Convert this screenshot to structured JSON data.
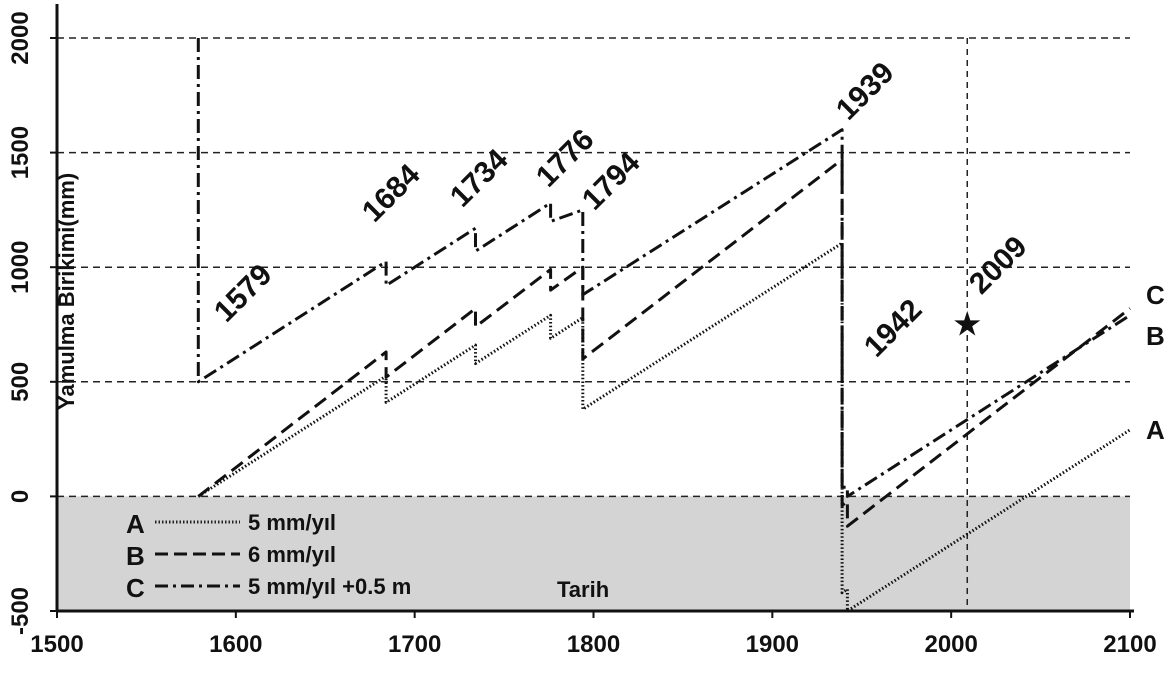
{
  "chart_data": {
    "type": "line",
    "xlabel": "Tarih",
    "ylabel": "Yamulma Birikimi(mm)",
    "xlim": [
      1500,
      2100
    ],
    "ylim": [
      -500,
      2000
    ],
    "x_ticks": [
      "1500",
      "1600",
      "1700",
      "1800",
      "1900",
      "2000",
      "2100"
    ],
    "y_ticks": [
      "-500",
      "0",
      "500",
      "1000",
      "1500",
      "2000"
    ],
    "grid": "horizontal dashed at y ticks",
    "shaded_region": {
      "y_from": -500,
      "y_to": 0,
      "color": "#d4d4d4"
    },
    "reference_line_x": 2009,
    "star_marker": {
      "x": 2009,
      "y": 750,
      "label": "2009"
    },
    "event_years": [
      "1579",
      "1684",
      "1734",
      "1776",
      "1794",
      "1939",
      "1942"
    ],
    "series": [
      {
        "name": "A",
        "legend_label": "5 mm/yıl",
        "style": "dotted",
        "points": [
          [
            1579,
            0
          ],
          [
            1684,
            525
          ],
          [
            1684,
            410
          ],
          [
            1734,
            660
          ],
          [
            1734,
            580
          ],
          [
            1776,
            790
          ],
          [
            1776,
            690
          ],
          [
            1794,
            780
          ],
          [
            1794,
            380
          ],
          [
            1939,
            1105
          ],
          [
            1939,
            -420
          ],
          [
            1942,
            -405
          ],
          [
            1942,
            -500
          ],
          [
            2100,
            290
          ]
        ]
      },
      {
        "name": "B",
        "legend_label": "6 mm/yıl",
        "style": "dashed",
        "points": [
          [
            1579,
            0
          ],
          [
            1684,
            630
          ],
          [
            1684,
            520
          ],
          [
            1734,
            820
          ],
          [
            1734,
            740
          ],
          [
            1776,
            990
          ],
          [
            1776,
            900
          ],
          [
            1794,
            1000
          ],
          [
            1794,
            600
          ],
          [
            1939,
            1470
          ],
          [
            1939,
            -40
          ],
          [
            1942,
            -20
          ],
          [
            1942,
            -130
          ],
          [
            2100,
            820
          ]
        ]
      },
      {
        "name": "C",
        "legend_label": "5 mm/yıl +0.5 m",
        "style": "dashdot",
        "points": [
          [
            1579,
            2000
          ],
          [
            1579,
            500
          ],
          [
            1684,
            1025
          ],
          [
            1684,
            920
          ],
          [
            1734,
            1170
          ],
          [
            1734,
            1070
          ],
          [
            1776,
            1280
          ],
          [
            1776,
            1200
          ],
          [
            1794,
            1250
          ],
          [
            1794,
            880
          ],
          [
            1939,
            1600
          ],
          [
            1939,
            40
          ],
          [
            1942,
            40
          ],
          [
            1942,
            0
          ],
          [
            2100,
            790
          ]
        ]
      }
    ]
  },
  "legend": [
    {
      "key": "A",
      "label": "5 mm/yıl"
    },
    {
      "key": "B",
      "label": "6 mm/yıl"
    },
    {
      "key": "C",
      "label": "5 mm/yıl +0.5 m"
    }
  ],
  "series_end_labels": [
    "C",
    "B",
    "A"
  ],
  "colors": {
    "line": "#111111",
    "grid": "#222222",
    "shade": "#d4d4d4"
  }
}
